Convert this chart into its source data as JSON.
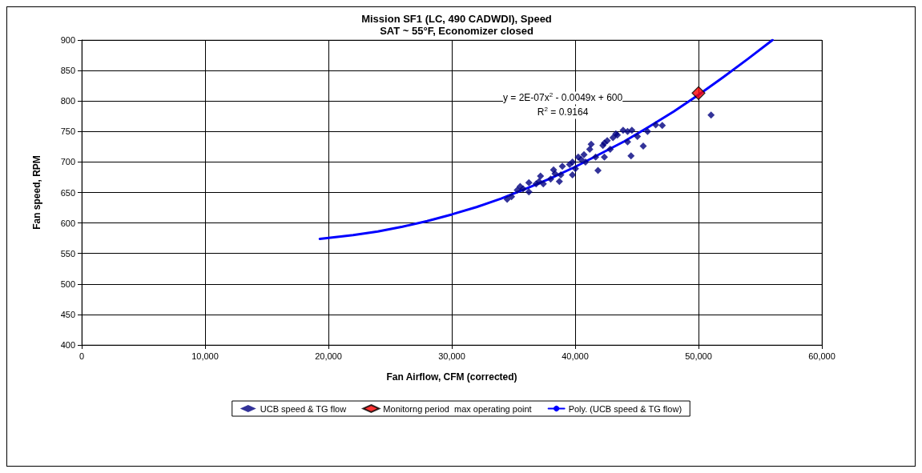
{
  "chart_data": {
    "type": "scatter",
    "title": "Mission SF1 (LC, 490 CADWDI), Speed",
    "subtitle": "SAT ~ 55°F, Economizer closed",
    "xlabel": "Fan Airflow, CFM (corrected)",
    "ylabel": "Fan speed, RPM",
    "xlim": [
      0,
      60000
    ],
    "xticks": [
      {
        "value": 0,
        "label": "0"
      },
      {
        "value": 10000,
        "label": "10,000"
      },
      {
        "value": 20000,
        "label": "20,000"
      },
      {
        "value": 30000,
        "label": "30,000"
      },
      {
        "value": 40000,
        "label": "40,000"
      },
      {
        "value": 50000,
        "label": "50,000"
      },
      {
        "value": 60000,
        "label": "60,000"
      }
    ],
    "ylim": [
      400,
      900
    ],
    "yticks": [
      400,
      450,
      500,
      550,
      600,
      650,
      700,
      750,
      800,
      850,
      900
    ],
    "grid": true,
    "legend": "bottom",
    "annotations": [
      "y = 2E-07x$^{2}$ - 0.0049x + 600",
      "R$^{2}$ = 0.9164"
    ],
    "series": [
      {
        "name": "UCB speed & TG flow",
        "color": "#000080",
        "marker": "diamond",
        "x": [
          34487,
          34840,
          35310,
          35545,
          36250,
          36250,
          36840,
          37190,
          37420,
          38015,
          38250,
          38720,
          38840,
          38960,
          39780,
          39780,
          40020,
          40250,
          40720,
          40840,
          41300,
          41180,
          41660,
          41850,
          42250,
          42370,
          42600,
          42840,
          43070,
          43300,
          43890,
          44250,
          44250,
          44600,
          44530,
          45050,
          45520,
          45870,
          46530,
          47060,
          51020,
          40490,
          39550,
          42370,
          43420,
          38370,
          37070,
          35780
        ],
        "values": [
          639,
          643,
          654,
          660,
          651,
          666,
          664,
          677,
          664,
          672,
          687,
          668,
          679,
          693,
          679,
          700,
          689,
          708,
          712,
          700,
          729,
          721,
          708,
          686,
          727,
          708,
          735,
          721,
          740,
          746,
          752,
          750,
          733,
          752,
          710,
          742,
          726,
          750,
          761,
          760,
          777,
          704,
          696,
          731,
          744,
          681,
          668,
          656
        ]
      },
      {
        "name": "Monitorng period  max operating point",
        "color": "#ff0000",
        "marker": "diamond",
        "x": [
          50000
        ],
        "values": [
          813
        ]
      },
      {
        "name": "Poly. (UCB speed & TG flow)",
        "color": "#0000ff",
        "type": "line",
        "line_style": "solid",
        "x": [
          19300,
          22000,
          24000,
          26000,
          28000,
          30000,
          32000,
          34000,
          36000,
          38000,
          40000,
          42000,
          44000,
          46000,
          48000,
          50000,
          52000,
          54000,
          56000
        ],
        "values": [
          574,
          580,
          586,
          594,
          603,
          614,
          626,
          640,
          656,
          673,
          692,
          713,
          734,
          758,
          783,
          810,
          839,
          869,
          900
        ]
      }
    ]
  }
}
